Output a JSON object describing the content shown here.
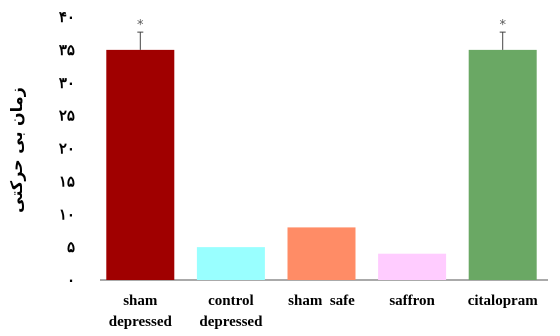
{
  "chart_data": {
    "type": "bar",
    "title": "",
    "xlabel": "",
    "ylabel": "زمان بی حرکتی",
    "ylim": [
      0,
      40
    ],
    "yticks": [
      0,
      5,
      10,
      15,
      20,
      25,
      30,
      35,
      40
    ],
    "ytick_labels": [
      "٠",
      "۵",
      "١٠",
      "١۵",
      "٢٠",
      "٢۵",
      "٣٠",
      "٣۵",
      "۴٠"
    ],
    "categories": [
      [
        "sham",
        "depressed"
      ],
      [
        "control",
        "depressed"
      ],
      [
        "sham  safe",
        ""
      ],
      [
        "saffron",
        ""
      ],
      [
        "citalopram",
        ""
      ]
    ],
    "values": [
      35,
      5,
      8,
      4,
      35
    ],
    "errors": [
      2.7,
      0,
      0,
      0,
      2.7
    ],
    "annotations": [
      "*",
      "",
      "",
      "",
      "*"
    ],
    "colors": [
      "#a00000",
      "#99ffff",
      "#ff8c66",
      "#ffccff",
      "#6aa864"
    ],
    "grid": false,
    "legend": "none"
  }
}
